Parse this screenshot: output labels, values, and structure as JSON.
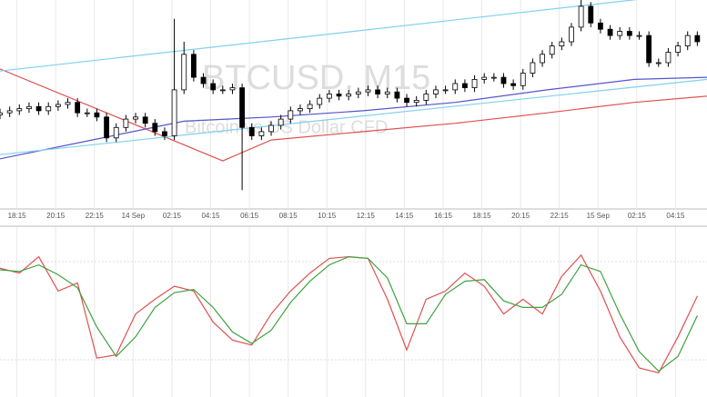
{
  "chart_data": [
    {
      "type": "candlestick",
      "title": "BTCUSD, M15",
      "subtitle": "Bitcoin vs US Dollar CFD",
      "xlim": [
        0,
        146
      ],
      "ylim": [
        0,
        100
      ],
      "xticks": [
        {
          "value": 3.5,
          "label": "18:15"
        },
        {
          "value": 11.5,
          "label": "20:15"
        },
        {
          "value": 19.5,
          "label": "22:15"
        },
        {
          "value": 27.5,
          "label": "14 Sep"
        },
        {
          "value": 35.5,
          "label": "02:15"
        },
        {
          "value": 43.5,
          "label": "04:15"
        },
        {
          "value": 51.5,
          "label": "06:15"
        },
        {
          "value": 59.5,
          "label": "08:15"
        },
        {
          "value": 67.5,
          "label": "10:15"
        },
        {
          "value": 75.5,
          "label": "12:15"
        },
        {
          "value": 83.5,
          "label": "14:15"
        },
        {
          "value": 91.5,
          "label": "16:15"
        },
        {
          "value": 99.5,
          "label": "18:15"
        },
        {
          "value": 107.5,
          "label": "20:15"
        },
        {
          "value": 115.5,
          "label": "22:15"
        },
        {
          "value": 123.5,
          "label": "15 Sep"
        },
        {
          "value": 131.5,
          "label": "02:15"
        },
        {
          "value": 139.5,
          "label": "04:15"
        }
      ],
      "grid": true,
      "up_color": "#ffffff",
      "down_color": "#000000",
      "x": [
        0,
        2,
        4,
        6,
        8,
        10,
        12,
        14,
        16,
        18,
        20,
        22,
        24,
        26,
        28,
        30,
        32,
        34,
        36,
        38,
        40,
        42,
        44,
        46,
        48,
        50,
        52,
        54,
        56,
        58,
        60,
        62,
        64,
        66,
        68,
        70,
        72,
        74,
        76,
        78,
        80,
        82,
        84,
        86,
        88,
        90,
        92,
        94,
        96,
        98,
        100,
        102,
        104,
        106,
        108,
        110,
        112,
        114,
        116,
        118,
        120,
        122,
        124,
        126,
        128,
        130,
        132,
        134,
        136,
        138,
        140,
        142,
        144
      ],
      "open": [
        45,
        46,
        47,
        48,
        49,
        47,
        49,
        50,
        51,
        46,
        46,
        44,
        34,
        39,
        43,
        44,
        41,
        37,
        35,
        57,
        74,
        63,
        60,
        57,
        57,
        58,
        39,
        35,
        37,
        40,
        43,
        47,
        48,
        50,
        53,
        55,
        54,
        55,
        56,
        57,
        55,
        56,
        53,
        51,
        52,
        55,
        57,
        57,
        60,
        58,
        62,
        63,
        63,
        60,
        59,
        65,
        70,
        74,
        78,
        80,
        87,
        97,
        89,
        86,
        83,
        85,
        83,
        83,
        70,
        70,
        75,
        78,
        83
      ],
      "high": [
        48,
        49,
        50,
        51,
        51,
        51,
        52,
        53,
        53,
        48,
        48,
        46,
        41,
        45,
        46,
        46,
        43,
        39,
        91,
        80,
        76,
        65,
        62,
        59,
        60,
        60,
        41,
        39,
        42,
        45,
        49,
        50,
        52,
        55,
        57,
        57,
        57,
        58,
        59,
        59,
        58,
        58,
        55,
        54,
        57,
        59,
        59,
        62,
        62,
        64,
        65,
        65,
        65,
        62,
        67,
        72,
        76,
        80,
        82,
        89,
        100,
        99,
        91,
        88,
        87,
        87,
        85,
        85,
        72,
        77,
        80,
        85,
        85
      ],
      "low": [
        43,
        44,
        45,
        46,
        45,
        45,
        47,
        48,
        44,
        44,
        42,
        32,
        32,
        37,
        41,
        39,
        35,
        33,
        33,
        55,
        61,
        58,
        55,
        55,
        55,
        9,
        33,
        33,
        35,
        38,
        41,
        45,
        46,
        48,
        51,
        52,
        52,
        53,
        54,
        53,
        53,
        51,
        49,
        49,
        50,
        53,
        55,
        55,
        56,
        56,
        60,
        61,
        58,
        57,
        57,
        63,
        68,
        72,
        76,
        78,
        85,
        87,
        84,
        81,
        81,
        81,
        81,
        68,
        68,
        68,
        73,
        76,
        78
      ],
      "close": [
        46,
        47,
        48,
        49,
        47,
        49,
        50,
        51,
        46,
        46,
        44,
        34,
        39,
        43,
        44,
        41,
        37,
        35,
        57,
        74,
        63,
        60,
        57,
        57,
        58,
        39,
        35,
        37,
        40,
        43,
        47,
        48,
        50,
        53,
        55,
        54,
        55,
        56,
        57,
        55,
        56,
        53,
        51,
        52,
        55,
        57,
        57,
        60,
        58,
        62,
        63,
        63,
        60,
        59,
        65,
        70,
        74,
        78,
        80,
        87,
        97,
        89,
        86,
        83,
        85,
        83,
        83,
        70,
        70,
        75,
        78,
        83,
        80
      ],
      "lines": [
        {
          "color": "#e05050",
          "x": [
            0,
            22,
            46,
            56,
            75,
            94,
            113,
            131,
            146
          ],
          "values": [
            67,
            46,
            23,
            33,
            37,
            41,
            46,
            51,
            54
          ]
        },
        {
          "color": "#5555cc",
          "x": [
            0,
            19,
            38,
            56,
            75,
            94,
            113,
            131,
            146
          ],
          "values": [
            24,
            33,
            42,
            44,
            47,
            51,
            57,
            62,
            63
          ]
        },
        {
          "color": "#7fd0ee",
          "x": [
            0,
            146
          ],
          "values": [
            66,
            104
          ]
        },
        {
          "color": "#7fd0ee",
          "x": [
            0,
            146
          ],
          "values": [
            26,
            62
          ]
        }
      ]
    },
    {
      "type": "line",
      "xlim": [
        0,
        146
      ],
      "ylim": [
        0,
        100
      ],
      "x": [
        0,
        4,
        8,
        12,
        16,
        20,
        24,
        28,
        32,
        36,
        40,
        44,
        48,
        52,
        56,
        60,
        64,
        68,
        72,
        76,
        80,
        84,
        88,
        92,
        96,
        100,
        104,
        108,
        112,
        116,
        120,
        124,
        128,
        132,
        136,
        140,
        144
      ],
      "series": [
        {
          "color": "#e05050",
          "values": [
            76,
            73,
            83,
            62,
            67,
            21,
            23,
            48,
            57,
            65,
            62,
            43,
            32,
            29,
            48,
            62,
            73,
            82,
            83,
            82,
            57,
            26,
            57,
            62,
            73,
            65,
            48,
            57,
            48,
            71,
            84,
            62,
            34,
            15,
            12,
            34,
            59
          ]
        },
        {
          "color": "#40a040",
          "values": [
            75,
            74,
            78,
            72,
            64,
            40,
            22,
            34,
            52,
            61,
            63,
            52,
            37,
            30,
            38,
            55,
            68,
            78,
            83,
            82,
            70,
            42,
            42,
            60,
            68,
            69,
            56,
            52,
            52,
            60,
            78,
            74,
            48,
            25,
            13,
            22,
            47
          ]
        }
      ]
    }
  ]
}
